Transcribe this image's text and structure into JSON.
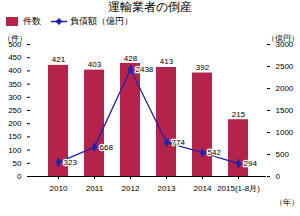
{
  "chart_data": {
    "type": "bar",
    "title": "運輸業者の倒産",
    "categories": [
      "2010",
      "2011",
      "2012",
      "2013",
      "2014",
      "2015(1-8月)"
    ],
    "series": [
      {
        "name": "件数",
        "type": "bar",
        "color": "#b5234a",
        "values": [
          421,
          403,
          428,
          413,
          392,
          215
        ]
      },
      {
        "name": "負債額（億円）",
        "type": "line",
        "axis": "y2",
        "color": "#2222aa",
        "marker": "diamond",
        "values": [
          323,
          668,
          2438,
          774,
          542,
          294
        ]
      }
    ],
    "xlabel": "（年）",
    "ylabel": "（件）",
    "y2label": "（億円）",
    "ylim": [
      0,
      500
    ],
    "yticks": [
      0,
      50,
      100,
      150,
      200,
      250,
      300,
      350,
      400,
      450,
      500
    ],
    "y2lim": [
      0,
      3000
    ],
    "y2ticks": [
      0,
      500,
      1000,
      1500,
      2000,
      2500,
      3000
    ],
    "grid": false,
    "legend": "upper left",
    "data_labels": true
  }
}
